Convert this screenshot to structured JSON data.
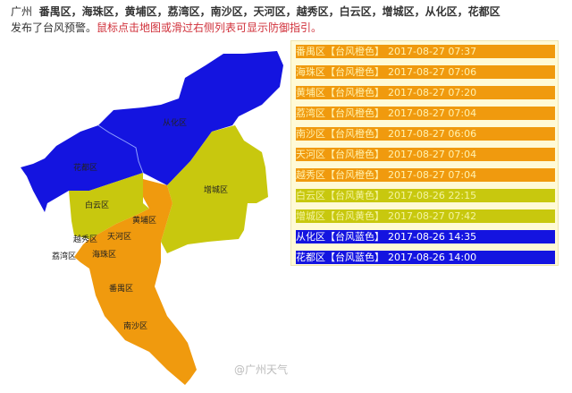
{
  "header": {
    "city": "广州",
    "districts": "番禺区，海珠区，黄埔区，荔湾区，南沙区，天河区，越秀区，白云区，增城区，从化区，花都区",
    "suffix": "发布了台风预警。",
    "hint": "鼠标点击地图或滑过右侧列表可显示防御指引。"
  },
  "colors": {
    "orange": "#f09a0e",
    "yellow": "#c8c80e",
    "blue": "#1414e0",
    "panel": "#fffad6"
  },
  "map": {
    "labels": [
      "从化区",
      "花都区",
      "增城区",
      "白云区",
      "黄埔区",
      "天河区",
      "越秀区",
      "荔湾区",
      "海珠区",
      "番禺区",
      "南沙区"
    ]
  },
  "warnings": [
    {
      "district": "番禺区",
      "level": "【台风橙色】",
      "time": "2017-08-27 07:37",
      "color": "orange"
    },
    {
      "district": "海珠区",
      "level": "【台风橙色】",
      "time": "2017-08-27 07:06",
      "color": "orange"
    },
    {
      "district": "黄埔区",
      "level": "【台风橙色】",
      "time": "2017-08-27 07:20",
      "color": "orange"
    },
    {
      "district": "荔湾区",
      "level": "【台风橙色】",
      "time": "2017-08-27 07:04",
      "color": "orange"
    },
    {
      "district": "南沙区",
      "level": "【台风橙色】",
      "time": "2017-08-27 06:06",
      "color": "orange"
    },
    {
      "district": "天河区",
      "level": "【台风橙色】",
      "time": "2017-08-27 07:04",
      "color": "orange"
    },
    {
      "district": "越秀区",
      "level": "【台风橙色】",
      "time": "2017-08-27 07:04",
      "color": "orange"
    },
    {
      "district": "白云区",
      "level": "【台风黄色】",
      "time": "2017-08-26 22:15",
      "color": "yellow"
    },
    {
      "district": "增城区",
      "level": "【台风黄色】",
      "time": "2017-08-27 07:42",
      "color": "yellow"
    },
    {
      "district": "从化区",
      "level": "【台风蓝色】",
      "time": "2017-08-26 14:35",
      "color": "blue"
    },
    {
      "district": "花都区",
      "level": "【台风蓝色】",
      "time": "2017-08-26 14:00",
      "color": "blue"
    }
  ],
  "watermark": "@广州天气"
}
